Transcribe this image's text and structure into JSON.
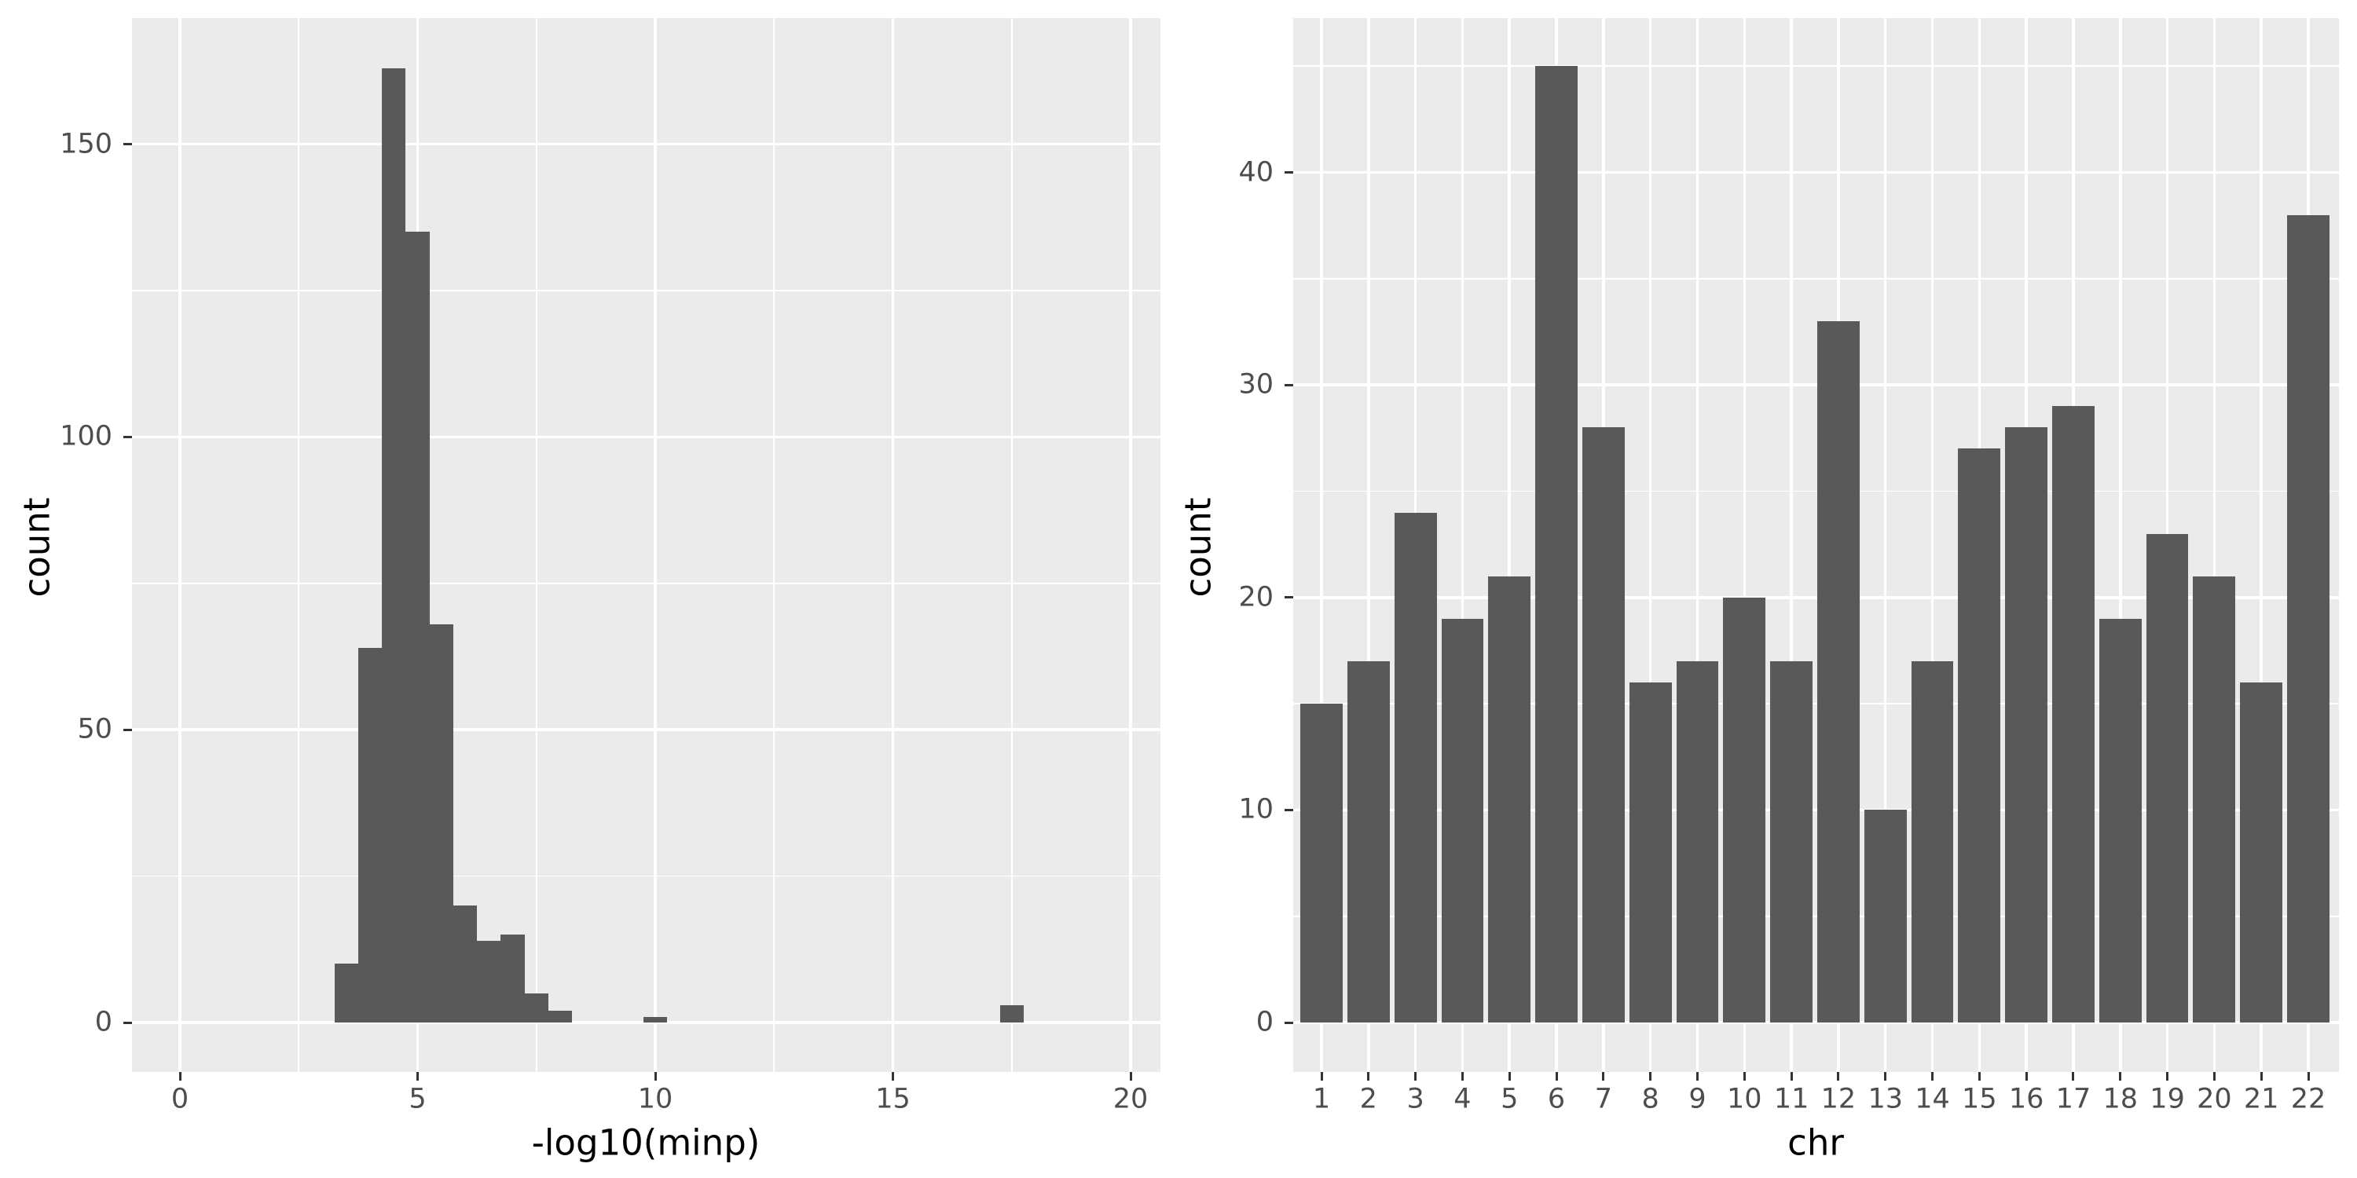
{
  "style": {
    "figure_background": "#FFFFFF",
    "panel_background": "#EBEBEB",
    "grid_major_color": "#FFFFFF",
    "grid_minor_color": "#FFFFFF",
    "bar_fill": "#595959",
    "tick_label_color": "#4D4D4D",
    "tick_mark_color": "#333333",
    "axis_title_color": "#000000"
  },
  "chart_data": [
    {
      "type": "bar",
      "subtype": "histogram",
      "title": "",
      "xlabel": "-log10(minp)",
      "ylabel": "count",
      "bin_width": 0.5,
      "bin_centers": [
        3.5,
        4.0,
        4.5,
        5.0,
        5.5,
        6.0,
        6.5,
        7.0,
        7.5,
        8.0,
        10.0,
        17.5
      ],
      "values": [
        10,
        64,
        163,
        135,
        68,
        20,
        14,
        15,
        5,
        2,
        1,
        3
      ],
      "x_ticks": [
        0,
        5,
        10,
        15,
        20
      ],
      "x_minor_ticks": [
        2.5,
        7.5,
        12.5,
        17.5
      ],
      "y_ticks": [
        0,
        50,
        100,
        150
      ],
      "y_minor_ticks": [
        25,
        75,
        125
      ],
      "xlim": [
        -1.0,
        20.6
      ],
      "ylim": [
        -8.5,
        171.5
      ],
      "grid": true,
      "legend": false
    },
    {
      "type": "bar",
      "subtype": "categorical",
      "title": "",
      "xlabel": "chr",
      "ylabel": "count",
      "categories": [
        "1",
        "2",
        "3",
        "4",
        "5",
        "6",
        "7",
        "8",
        "9",
        "10",
        "11",
        "12",
        "13",
        "14",
        "15",
        "16",
        "17",
        "18",
        "19",
        "20",
        "21",
        "22"
      ],
      "values": [
        15,
        17,
        24,
        19,
        21,
        45,
        28,
        16,
        17,
        20,
        17,
        33,
        10,
        17,
        27,
        28,
        29,
        19,
        23,
        21,
        16,
        38
      ],
      "y_ticks": [
        0,
        10,
        20,
        30,
        40
      ],
      "y_minor_ticks": [
        5,
        15,
        25,
        35,
        45
      ],
      "ylim": [
        -2.25,
        47.25
      ],
      "grid": true,
      "legend": false
    }
  ]
}
